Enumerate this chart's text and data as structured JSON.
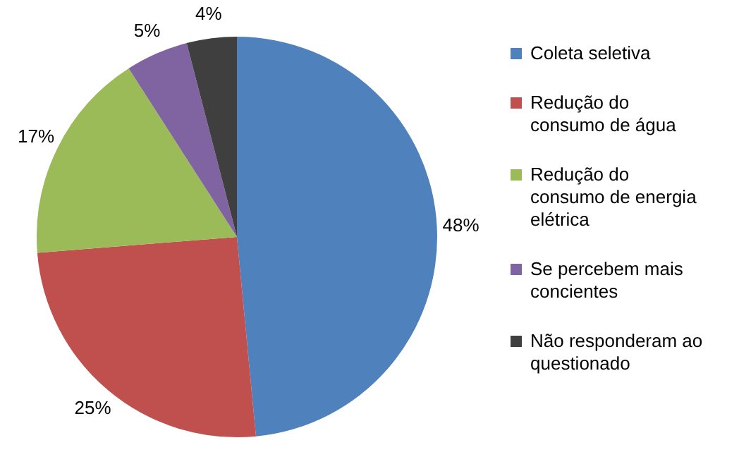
{
  "chart_data": {
    "type": "pie",
    "categories": [
      "Coleta seletiva",
      "Redução do consumo de água",
      "Redução do consumo de energia elétrica",
      "Se percebem mais concientes",
      "Não responderam ao questionado"
    ],
    "values": [
      48,
      25,
      17,
      5,
      4
    ],
    "colors": [
      "#4f81bd",
      "#c0504d",
      "#9bbb59",
      "#8064a2",
      "#3f3f3f"
    ],
    "value_labels": [
      "48%",
      "25%",
      "17%",
      "5%",
      "4%"
    ],
    "legend": "right"
  }
}
